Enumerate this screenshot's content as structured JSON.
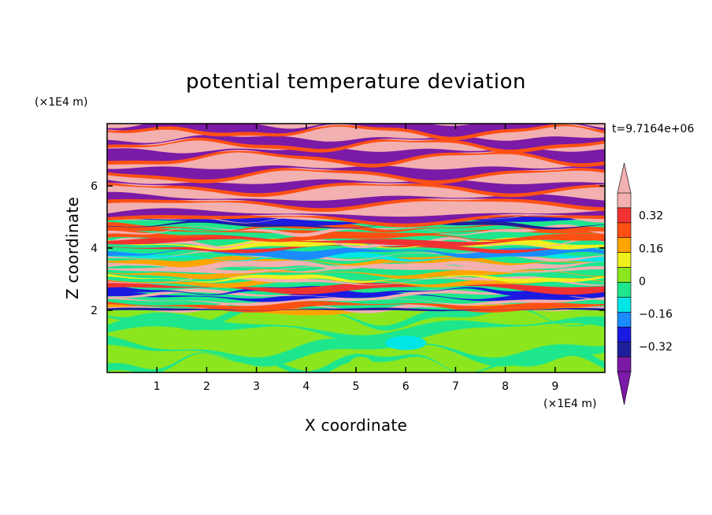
{
  "chart_data": {
    "type": "heatmap",
    "title": "potential temperature deviation",
    "xlabel": "X coordinate",
    "ylabel": "Z coordinate",
    "x_unit": "(×1E4 m)",
    "y_unit": "(×1E4 m)",
    "time_label": "t=9.7164e+06",
    "xlim": [
      0,
      10
    ],
    "ylim": [
      0,
      8
    ],
    "x_ticks": [
      1,
      2,
      3,
      4,
      5,
      6,
      7,
      8,
      9
    ],
    "y_ticks": [
      2,
      4,
      6
    ],
    "colorbar": {
      "levels": [
        -0.4,
        -0.32,
        -0.24,
        -0.16,
        -0.08,
        0,
        0.08,
        0.16,
        0.24,
        0.32,
        0.4
      ],
      "labeled_levels": [
        "0.32",
        "0.16",
        "0",
        "−0.16",
        "−0.32"
      ],
      "labeled_values": [
        0.32,
        0.16,
        0,
        -0.16,
        -0.32
      ],
      "colors_low_to_high": [
        "#7b1aa6",
        "#1f1f9e",
        "#1a1ae0",
        "#1a8cff",
        "#00e6e6",
        "#1ee68c",
        "#8ce61e",
        "#f0f01e",
        "#ffa500",
        "#ff5014",
        "#f03232",
        "#f2b0b0"
      ],
      "extend": "both"
    },
    "layers": [
      {
        "z_range": [
          0,
          2
        ],
        "description_value": "near 0 (green/lime)"
      },
      {
        "z_range": [
          2,
          5
        ],
        "description_value": "alternating -0.4 to 0.4 bands"
      },
      {
        "z_range": [
          5,
          8
        ],
        "description_value": "alternating pink (>0.4) and purple (<-0.4) bands"
      }
    ]
  }
}
